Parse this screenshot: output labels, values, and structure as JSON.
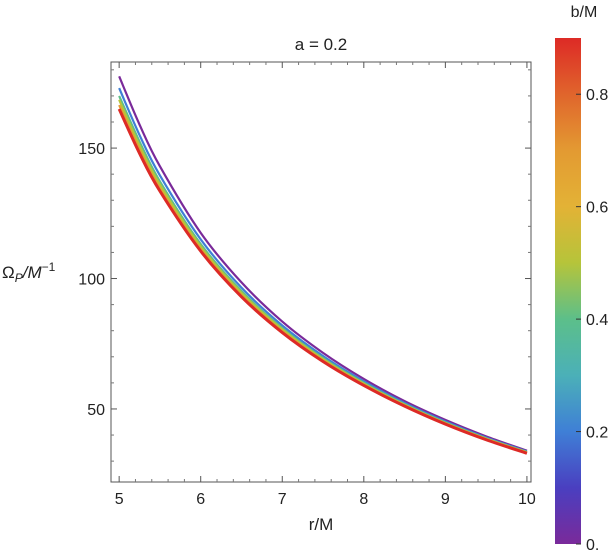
{
  "chart_data": {
    "type": "line",
    "title": "a = 0.2",
    "xlabel": "r/M",
    "ylabel_main": "Ω",
    "ylabel_sub": "P",
    "ylabel_rest": "/M",
    "ylabel_exp": "−1",
    "xlim": [
      4.9,
      10.05
    ],
    "ylim": [
      22,
      183
    ],
    "x_ticks": [
      5,
      6,
      7,
      8,
      9,
      10
    ],
    "y_ticks": [
      50,
      100,
      150
    ],
    "x_tick_labels": [
      "5",
      "6",
      "7",
      "8",
      "9",
      "10"
    ],
    "y_tick_labels": [
      "50",
      "100",
      "150"
    ],
    "grid": false,
    "series": [
      {
        "b": 0.0,
        "color": "#7a2a9a",
        "x": [
          5.0,
          5.25,
          5.5,
          6.0,
          6.5,
          7.0,
          7.5,
          8.0,
          8.5,
          9.0,
          9.5,
          10.0
        ],
        "y": [
          177.5,
          159.0,
          143.0,
          117.5,
          98.5,
          83.5,
          71.5,
          61.5,
          53.0,
          45.8,
          39.5,
          34.0
        ]
      },
      {
        "b": 0.3,
        "color": "#3f7fd6",
        "x": [
          5.0,
          5.25,
          5.5,
          6.0,
          6.5,
          7.0,
          7.5,
          8.0,
          8.5,
          9.0,
          9.5,
          10.0
        ],
        "y": [
          173.0,
          155.0,
          139.5,
          115.0,
          96.5,
          82.0,
          70.3,
          60.6,
          52.3,
          45.2,
          39.0,
          33.7
        ]
      },
      {
        "b": 0.5,
        "color": "#5cbf8a",
        "x": [
          5.0,
          5.25,
          5.5,
          6.0,
          6.5,
          7.0,
          7.5,
          8.0,
          8.5,
          9.0,
          9.5,
          10.0
        ],
        "y": [
          170.0,
          152.5,
          137.2,
          113.2,
          95.2,
          81.0,
          69.5,
          60.0,
          51.8,
          44.8,
          38.7,
          33.5
        ]
      },
      {
        "b": 0.6,
        "color": "#b6c43a",
        "x": [
          5.0,
          5.25,
          5.5,
          6.0,
          6.5,
          7.0,
          7.5,
          8.0,
          8.5,
          9.0,
          9.5,
          10.0
        ],
        "y": [
          168.5,
          151.0,
          136.0,
          112.3,
          94.5,
          80.5,
          69.1,
          59.7,
          51.6,
          44.6,
          38.6,
          33.4
        ]
      },
      {
        "b": 0.75,
        "color": "#e39a32",
        "x": [
          5.0,
          5.25,
          5.5,
          6.0,
          6.5,
          7.0,
          7.5,
          8.0,
          8.5,
          9.0,
          9.5,
          10.0
        ],
        "y": [
          166.5,
          149.3,
          134.5,
          111.2,
          93.6,
          79.8,
          68.6,
          59.3,
          51.3,
          44.4,
          38.4,
          33.2
        ]
      },
      {
        "b": 0.9,
        "color": "#dd2a26",
        "x": [
          5.0,
          5.25,
          5.5,
          6.0,
          6.5,
          7.0,
          7.5,
          8.0,
          8.5,
          9.0,
          9.5,
          10.0
        ],
        "y": [
          165.0,
          148.0,
          133.5,
          110.5,
          93.0,
          79.3,
          68.2,
          59.0,
          51.1,
          44.2,
          38.2,
          33.0
        ]
      }
    ],
    "colorbar": {
      "label": "b/M",
      "range": [
        0,
        0.9
      ],
      "ticks": [
        0,
        0.2,
        0.4,
        0.6,
        0.8
      ],
      "tick_labels": [
        "0.",
        "0.2",
        "0.4",
        "0.6",
        "0.8"
      ],
      "colors": [
        "#7a2a9a",
        "#4a3fc0",
        "#3f7fd6",
        "#4bb0b8",
        "#5cbf8a",
        "#b6c43a",
        "#e3b236",
        "#e39a32",
        "#e0652c",
        "#dd2a26"
      ]
    }
  }
}
